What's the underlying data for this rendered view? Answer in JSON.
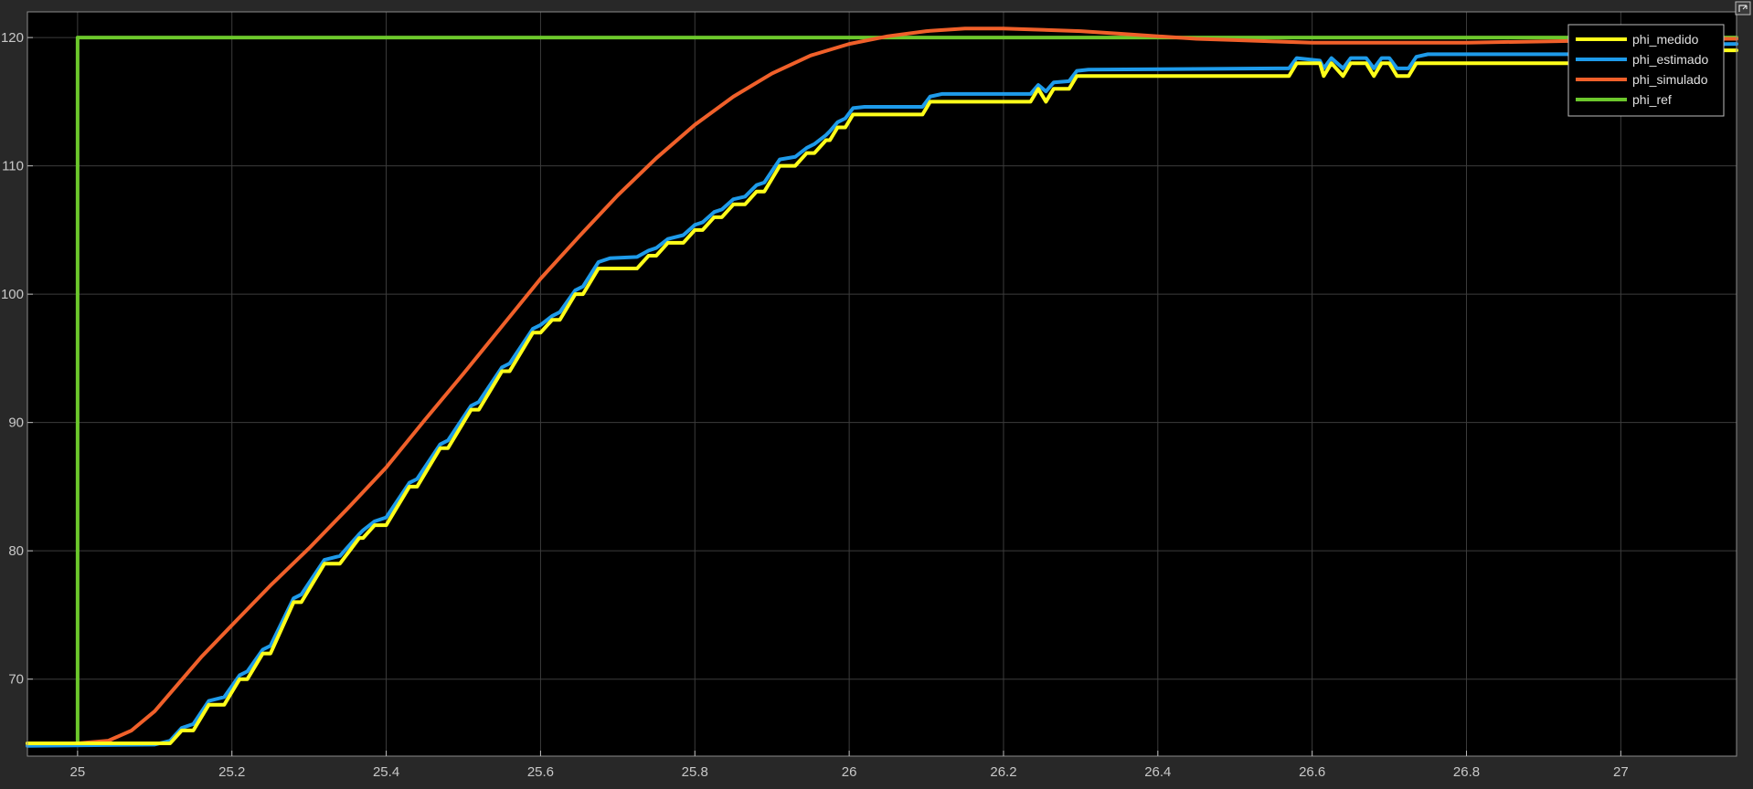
{
  "chart_data": {
    "type": "line",
    "title": "",
    "xlabel": "",
    "ylabel": "",
    "xlim": [
      24.935,
      27.15
    ],
    "ylim": [
      64.0,
      122.0
    ],
    "x_ticks": [
      25,
      25.2,
      25.4,
      25.6,
      25.8,
      26,
      26.2,
      26.4,
      26.6,
      26.8,
      27
    ],
    "x_tick_labels": [
      "25",
      "25.2",
      "25.4",
      "25.6",
      "25.8",
      "26",
      "26.2",
      "26.4",
      "26.6",
      "26.8",
      "27"
    ],
    "y_ticks": [
      70,
      80,
      90,
      100,
      110,
      120
    ],
    "y_tick_labels": [
      "70",
      "80",
      "90",
      "100",
      "110",
      "120"
    ],
    "grid": true,
    "legend_position": "top-right",
    "background": "#000000",
    "series": [
      {
        "name": "phi_medido",
        "color": "#FFFF1A",
        "points": [
          [
            24.935,
            65.0
          ],
          [
            25.12,
            65.0
          ],
          [
            25.135,
            66.0
          ],
          [
            25.15,
            66.0
          ],
          [
            25.17,
            68.0
          ],
          [
            25.19,
            68.0
          ],
          [
            25.21,
            70.0
          ],
          [
            25.22,
            70.0
          ],
          [
            25.24,
            72.0
          ],
          [
            25.25,
            72.0
          ],
          [
            25.28,
            76.0
          ],
          [
            25.29,
            76.0
          ],
          [
            25.32,
            79.0
          ],
          [
            25.34,
            79.0
          ],
          [
            25.365,
            81.0
          ],
          [
            25.37,
            81.0
          ],
          [
            25.385,
            82.0
          ],
          [
            25.4,
            82.0
          ],
          [
            25.43,
            85.0
          ],
          [
            25.44,
            85.0
          ],
          [
            25.47,
            88.0
          ],
          [
            25.48,
            88.0
          ],
          [
            25.51,
            91.0
          ],
          [
            25.52,
            91.0
          ],
          [
            25.55,
            94.0
          ],
          [
            25.56,
            94.0
          ],
          [
            25.59,
            97.0
          ],
          [
            25.6,
            97.0
          ],
          [
            25.615,
            98.0
          ],
          [
            25.625,
            98.0
          ],
          [
            25.645,
            100.0
          ],
          [
            25.655,
            100.0
          ],
          [
            25.675,
            102.0
          ],
          [
            25.725,
            102.0
          ],
          [
            25.74,
            103.0
          ],
          [
            25.75,
            103.0
          ],
          [
            25.765,
            104.0
          ],
          [
            25.785,
            104.0
          ],
          [
            25.8,
            105.0
          ],
          [
            25.81,
            105.0
          ],
          [
            25.825,
            106.0
          ],
          [
            25.835,
            106.0
          ],
          [
            25.85,
            107.0
          ],
          [
            25.865,
            107.0
          ],
          [
            25.88,
            108.0
          ],
          [
            25.89,
            108.0
          ],
          [
            25.91,
            110.0
          ],
          [
            25.93,
            110.0
          ],
          [
            25.945,
            111.0
          ],
          [
            25.955,
            111.0
          ],
          [
            25.97,
            112.0
          ],
          [
            25.975,
            112.0
          ],
          [
            25.985,
            113.0
          ],
          [
            25.995,
            113.0
          ],
          [
            26.005,
            114.0
          ],
          [
            26.095,
            114.0
          ],
          [
            26.105,
            115.0
          ],
          [
            26.235,
            115.0
          ],
          [
            26.245,
            116.0
          ],
          [
            26.255,
            115.0
          ],
          [
            26.265,
            116.0
          ],
          [
            26.285,
            116.0
          ],
          [
            26.295,
            117.0
          ],
          [
            26.57,
            117.0
          ],
          [
            26.58,
            118.0
          ],
          [
            26.61,
            118.0
          ],
          [
            26.615,
            117.0
          ],
          [
            26.625,
            118.0
          ],
          [
            26.64,
            117.0
          ],
          [
            26.65,
            118.0
          ],
          [
            26.67,
            118.0
          ],
          [
            26.68,
            117.0
          ],
          [
            26.69,
            118.0
          ],
          [
            26.7,
            118.0
          ],
          [
            26.71,
            117.0
          ],
          [
            26.725,
            117.0
          ],
          [
            26.735,
            118.0
          ],
          [
            26.98,
            118.0
          ],
          [
            26.99,
            119.0
          ],
          [
            27.15,
            119.0
          ]
        ]
      },
      {
        "name": "phi_estimado",
        "color": "#1E9BEA",
        "points": [
          [
            24.935,
            64.8
          ],
          [
            25.1,
            64.9
          ],
          [
            25.12,
            65.2
          ],
          [
            25.135,
            66.2
          ],
          [
            25.15,
            66.5
          ],
          [
            25.17,
            68.3
          ],
          [
            25.19,
            68.6
          ],
          [
            25.21,
            70.3
          ],
          [
            25.22,
            70.6
          ],
          [
            25.24,
            72.3
          ],
          [
            25.25,
            72.6
          ],
          [
            25.28,
            76.3
          ],
          [
            25.29,
            76.6
          ],
          [
            25.32,
            79.3
          ],
          [
            25.34,
            79.6
          ],
          [
            25.365,
            81.3
          ],
          [
            25.37,
            81.6
          ],
          [
            25.385,
            82.3
          ],
          [
            25.4,
            82.6
          ],
          [
            25.43,
            85.3
          ],
          [
            25.44,
            85.6
          ],
          [
            25.47,
            88.3
          ],
          [
            25.48,
            88.6
          ],
          [
            25.51,
            91.3
          ],
          [
            25.52,
            91.6
          ],
          [
            25.55,
            94.3
          ],
          [
            25.56,
            94.6
          ],
          [
            25.59,
            97.3
          ],
          [
            25.6,
            97.6
          ],
          [
            25.615,
            98.3
          ],
          [
            25.625,
            98.6
          ],
          [
            25.645,
            100.3
          ],
          [
            25.655,
            100.6
          ],
          [
            25.675,
            102.5
          ],
          [
            25.69,
            102.8
          ],
          [
            25.725,
            102.9
          ],
          [
            25.74,
            103.4
          ],
          [
            25.75,
            103.6
          ],
          [
            25.765,
            104.3
          ],
          [
            25.785,
            104.6
          ],
          [
            25.8,
            105.4
          ],
          [
            25.81,
            105.6
          ],
          [
            25.825,
            106.4
          ],
          [
            25.835,
            106.6
          ],
          [
            25.85,
            107.4
          ],
          [
            25.865,
            107.6
          ],
          [
            25.88,
            108.5
          ],
          [
            25.89,
            108.7
          ],
          [
            25.91,
            110.5
          ],
          [
            25.93,
            110.7
          ],
          [
            25.945,
            111.4
          ],
          [
            25.955,
            111.7
          ],
          [
            25.97,
            112.4
          ],
          [
            25.975,
            112.7
          ],
          [
            25.985,
            113.4
          ],
          [
            25.995,
            113.7
          ],
          [
            26.005,
            114.5
          ],
          [
            26.02,
            114.6
          ],
          [
            26.095,
            114.6
          ],
          [
            26.105,
            115.4
          ],
          [
            26.12,
            115.6
          ],
          [
            26.235,
            115.6
          ],
          [
            26.245,
            116.3
          ],
          [
            26.255,
            115.8
          ],
          [
            26.265,
            116.5
          ],
          [
            26.285,
            116.6
          ],
          [
            26.295,
            117.4
          ],
          [
            26.31,
            117.5
          ],
          [
            26.57,
            117.6
          ],
          [
            26.58,
            118.4
          ],
          [
            26.61,
            118.2
          ],
          [
            26.615,
            117.6
          ],
          [
            26.625,
            118.4
          ],
          [
            26.64,
            117.6
          ],
          [
            26.65,
            118.4
          ],
          [
            26.67,
            118.4
          ],
          [
            26.68,
            117.6
          ],
          [
            26.69,
            118.4
          ],
          [
            26.7,
            118.4
          ],
          [
            26.71,
            117.6
          ],
          [
            26.725,
            117.6
          ],
          [
            26.735,
            118.5
          ],
          [
            26.75,
            118.7
          ],
          [
            26.98,
            118.7
          ],
          [
            26.99,
            119.4
          ],
          [
            27.15,
            119.5
          ]
        ]
      },
      {
        "name": "phi_simulado",
        "color": "#F0602A",
        "points": [
          [
            24.935,
            65.0
          ],
          [
            25.0,
            65.0
          ],
          [
            25.04,
            65.2
          ],
          [
            25.07,
            66.0
          ],
          [
            25.1,
            67.5
          ],
          [
            25.13,
            69.6
          ],
          [
            25.16,
            71.7
          ],
          [
            25.2,
            74.2
          ],
          [
            25.25,
            77.3
          ],
          [
            25.3,
            80.2
          ],
          [
            25.35,
            83.3
          ],
          [
            25.4,
            86.5
          ],
          [
            25.45,
            90.2
          ],
          [
            25.5,
            93.8
          ],
          [
            25.55,
            97.5
          ],
          [
            25.6,
            101.2
          ],
          [
            25.65,
            104.5
          ],
          [
            25.7,
            107.7
          ],
          [
            25.75,
            110.6
          ],
          [
            25.8,
            113.2
          ],
          [
            25.85,
            115.4
          ],
          [
            25.9,
            117.2
          ],
          [
            25.95,
            118.6
          ],
          [
            26.0,
            119.5
          ],
          [
            26.05,
            120.1
          ],
          [
            26.1,
            120.5
          ],
          [
            26.15,
            120.7
          ],
          [
            26.2,
            120.7
          ],
          [
            26.25,
            120.6
          ],
          [
            26.3,
            120.5
          ],
          [
            26.35,
            120.3
          ],
          [
            26.4,
            120.1
          ],
          [
            26.45,
            119.9
          ],
          [
            26.5,
            119.8
          ],
          [
            26.55,
            119.7
          ],
          [
            26.6,
            119.6
          ],
          [
            26.7,
            119.6
          ],
          [
            26.8,
            119.6
          ],
          [
            26.9,
            119.7
          ],
          [
            27.0,
            119.8
          ],
          [
            27.1,
            119.9
          ],
          [
            27.15,
            119.9
          ]
        ]
      },
      {
        "name": "phi_ref",
        "color": "#6CC72C",
        "points": [
          [
            24.935,
            65.0
          ],
          [
            25.0,
            65.0
          ],
          [
            25.0,
            120.0
          ],
          [
            27.15,
            120.0
          ]
        ]
      }
    ]
  },
  "toolbar": {
    "expand_icon": "expand-icon"
  }
}
